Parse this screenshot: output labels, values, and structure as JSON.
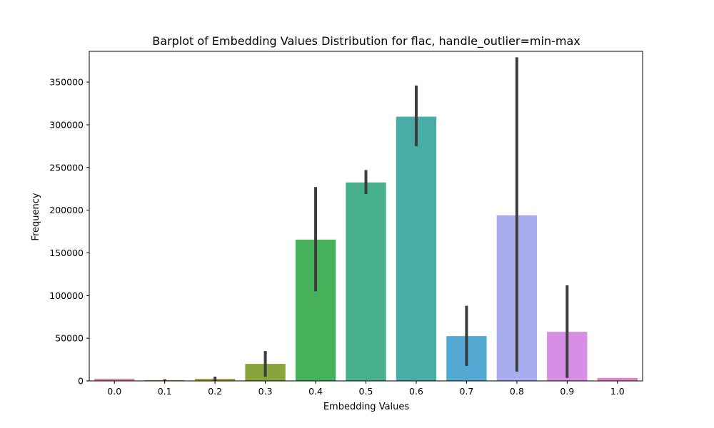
{
  "chart_data": {
    "type": "bar",
    "title": "Barplot of Embedding Values Distribution for flac, handle_outlier=min-max",
    "xlabel": "Embedding Values",
    "ylabel": "Frequency",
    "categories": [
      "0.0",
      "0.1",
      "0.2",
      "0.3",
      "0.4",
      "0.5",
      "0.6",
      "0.7",
      "0.8",
      "0.9",
      "1.0"
    ],
    "values": [
      2500,
      1000,
      2500,
      20000,
      165500,
      232500,
      309500,
      52500,
      194000,
      57500,
      3500
    ],
    "error_low": [
      2500,
      500,
      500,
      5000,
      105000,
      219000,
      275000,
      17500,
      11000,
      3500,
      3500
    ],
    "error_high": [
      2500,
      2000,
      5000,
      35000,
      227000,
      247000,
      346000,
      88000,
      379000,
      112000,
      3500
    ],
    "colors": [
      "#e8839a",
      "#cf8f3f",
      "#a6a23a",
      "#87a43d",
      "#46b15a",
      "#48b08f",
      "#48ada6",
      "#53a9d3",
      "#a7aded",
      "#d78fe6",
      "#e880c8"
    ],
    "ylim": [
      0,
      386000
    ],
    "yticks": [
      0,
      50000,
      100000,
      150000,
      200000,
      250000,
      300000,
      350000
    ],
    "grid": false,
    "legend": false
  }
}
